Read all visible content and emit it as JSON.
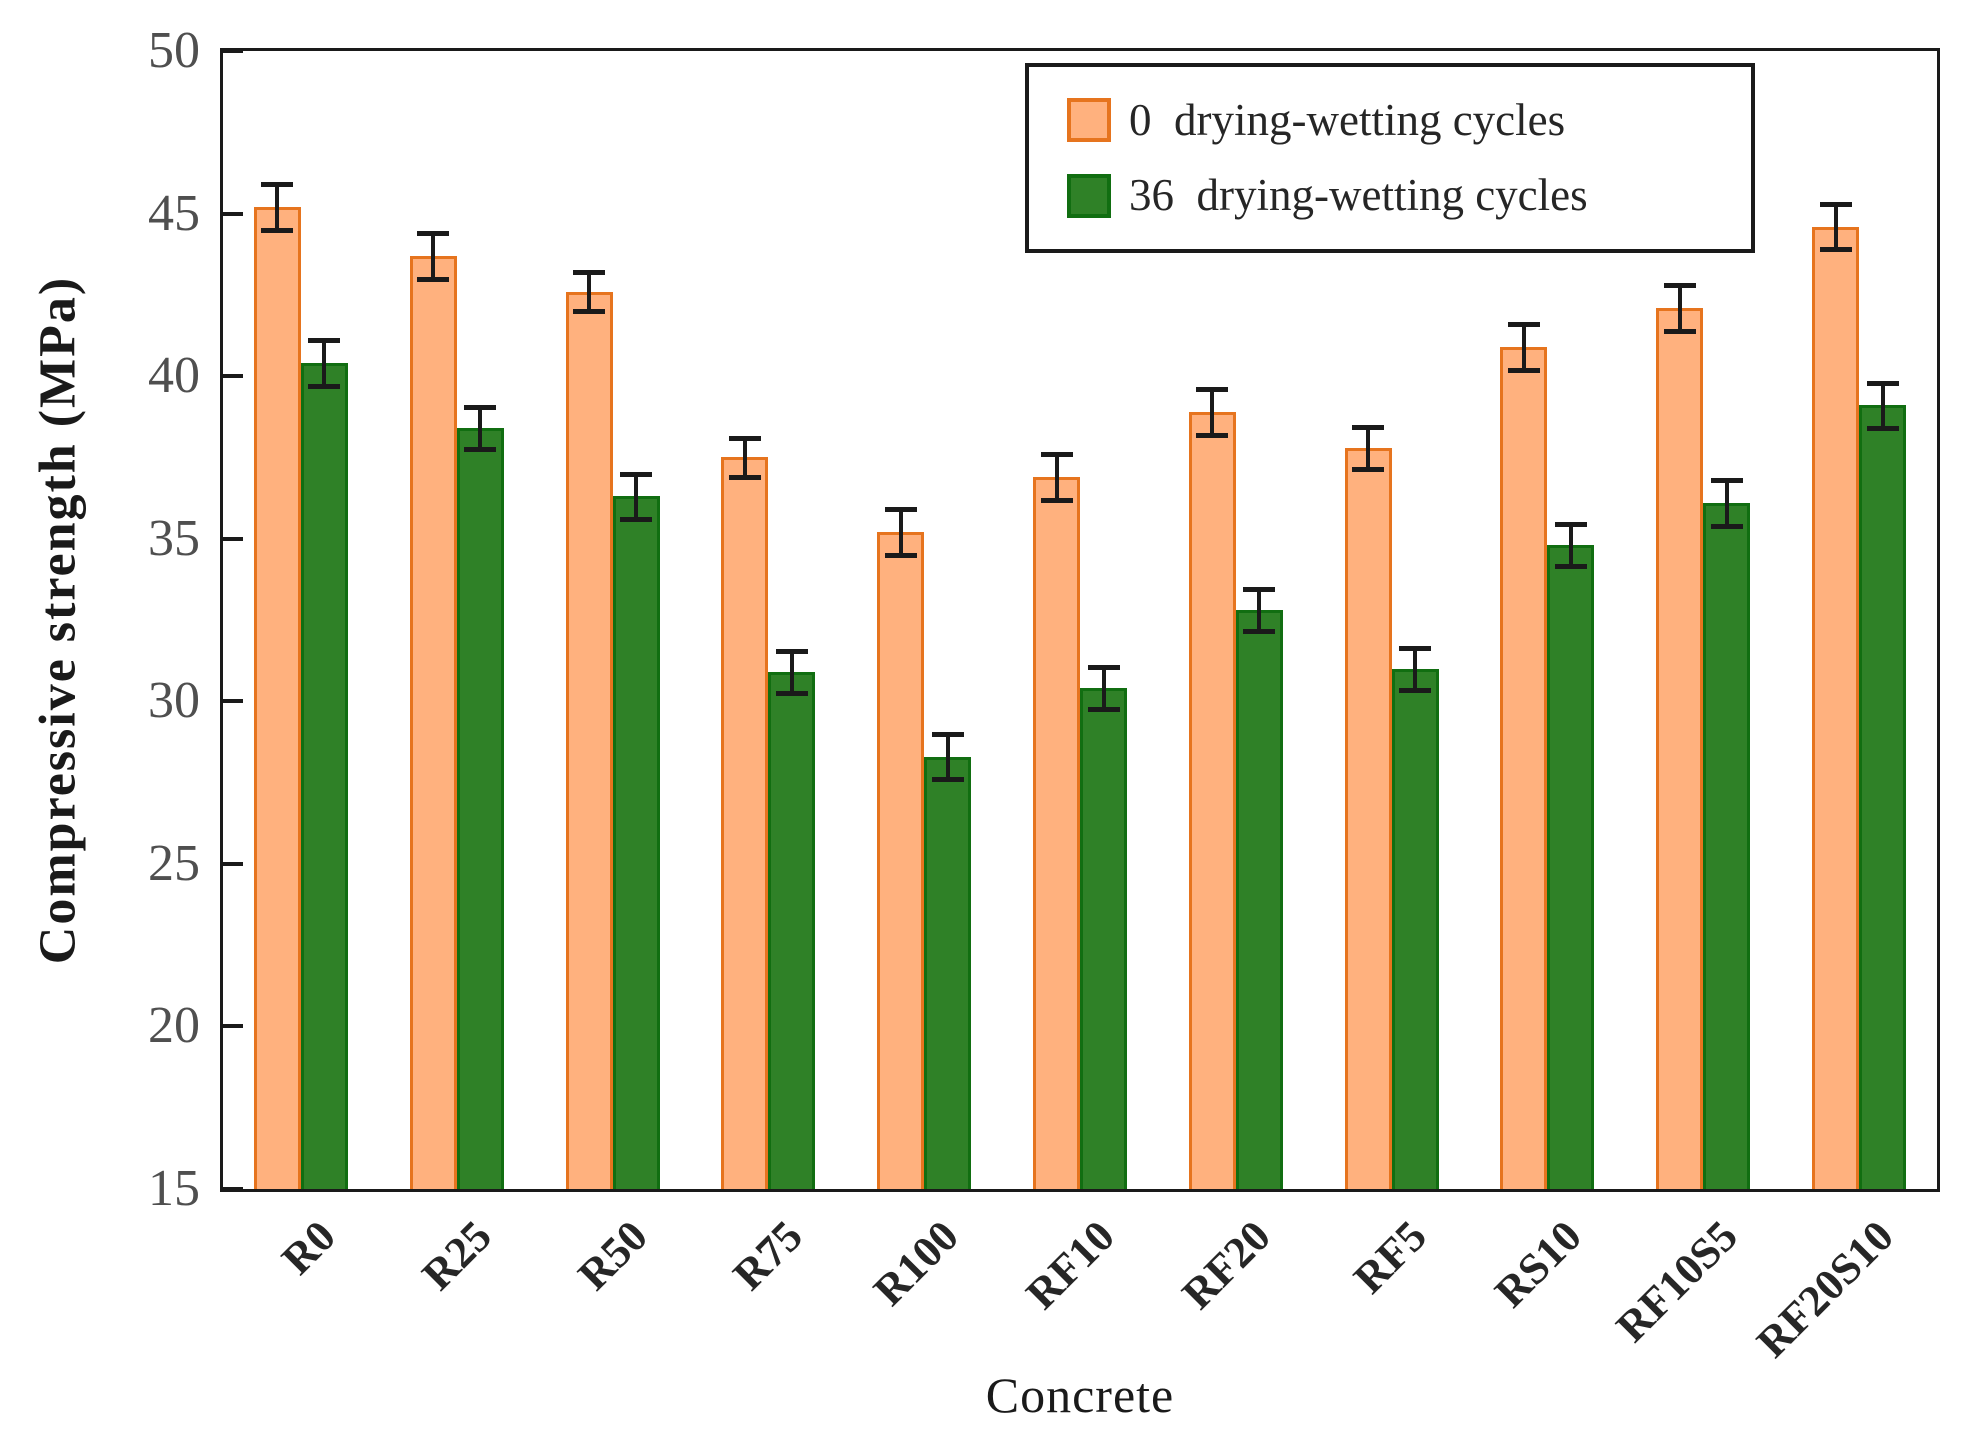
{
  "chart_data": {
    "type": "bar",
    "title": "",
    "xlabel": "Concrete",
    "ylabel": "Compressive strength (MPa)",
    "categories": [
      "R0",
      "R25",
      "R50",
      "R75",
      "R100",
      "RF10",
      "RF20",
      "RF5",
      "RS10",
      "RF10S5",
      "RF20S10"
    ],
    "series": [
      {
        "name": "0  drying-wetting cycles",
        "values": [
          45.2,
          43.7,
          42.6,
          37.5,
          35.2,
          36.9,
          38.9,
          37.8,
          40.9,
          42.1,
          44.6
        ],
        "errors": [
          0.7,
          0.7,
          0.6,
          0.6,
          0.7,
          0.7,
          0.7,
          0.65,
          0.7,
          0.7,
          0.7
        ],
        "fill": "#FFB17E",
        "border": "#E6741E"
      },
      {
        "name": "36  drying-wetting cycles",
        "values": [
          40.4,
          38.4,
          36.3,
          30.9,
          28.3,
          30.4,
          32.8,
          31.0,
          34.8,
          36.1,
          39.1
        ],
        "errors": [
          0.7,
          0.65,
          0.7,
          0.65,
          0.7,
          0.65,
          0.65,
          0.65,
          0.65,
          0.7,
          0.7
        ],
        "fill": "#2F8127",
        "border": "#116E11"
      }
    ],
    "ylim": [
      15,
      50
    ],
    "yticks": [
      15,
      20,
      25,
      30,
      35,
      40,
      45,
      50
    ],
    "grid": false,
    "legend_position": "top-right-inside",
    "axis_color": "#1a1a1a",
    "tick_label_color": "#4f4f4f",
    "error_bar_color": "#1a1a1a"
  }
}
